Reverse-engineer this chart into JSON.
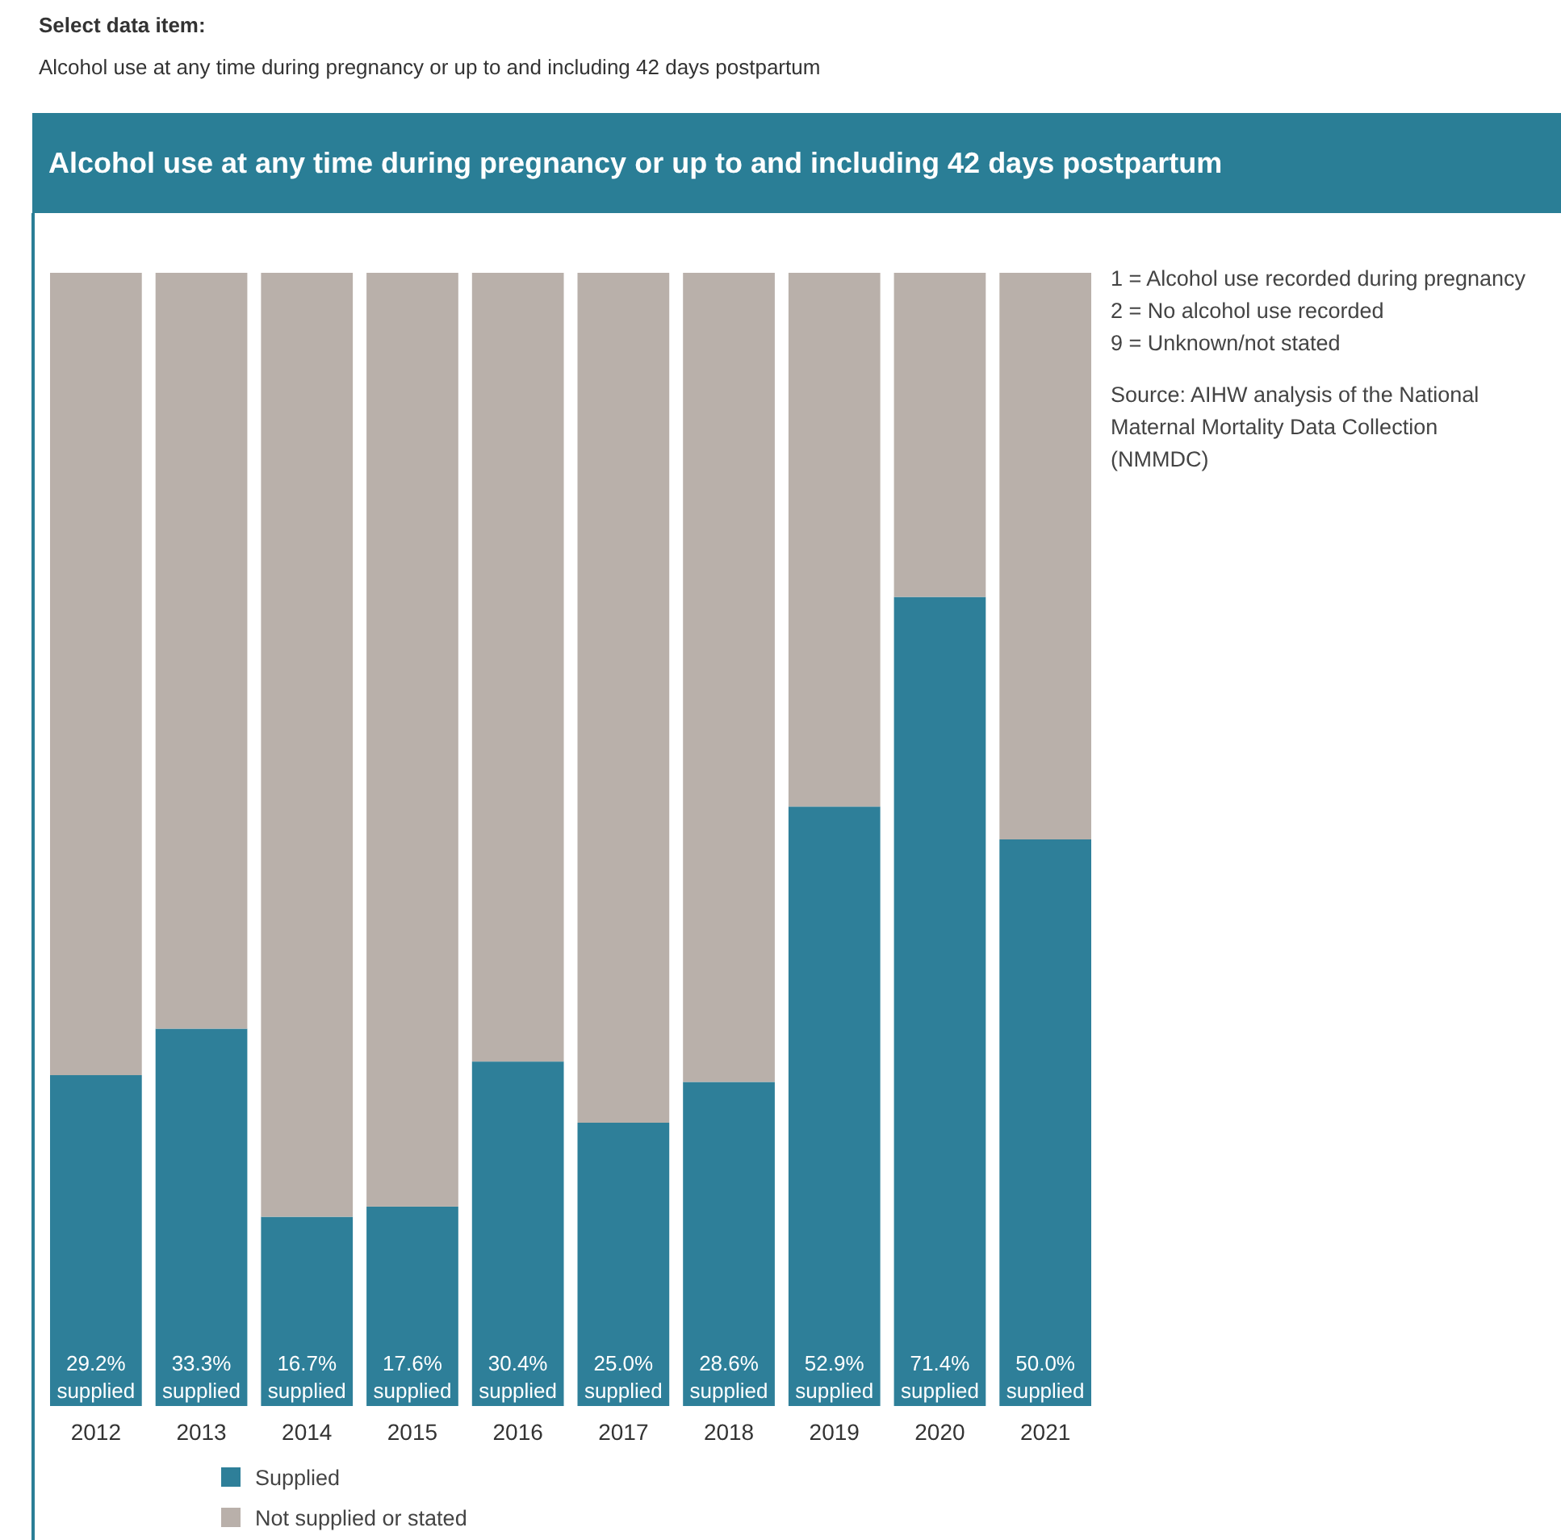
{
  "chart_data": {
    "type": "bar",
    "stacked": true,
    "title": "Alcohol use at any time during pregnancy or up to and including 42 days postpartum",
    "categories": [
      "2012",
      "2013",
      "2014",
      "2015",
      "2016",
      "2017",
      "2018",
      "2019",
      "2020",
      "2021"
    ],
    "ylim": [
      0,
      100
    ],
    "tick_labels": "x",
    "legend": "bottom left",
    "series": [
      {
        "name": "Supplied",
        "color": "#2e7f99",
        "values": [
          29.2,
          33.3,
          16.7,
          17.6,
          30.4,
          25.0,
          28.6,
          52.9,
          71.4,
          50.0
        ],
        "value_labels": [
          "29.2% supplied",
          "33.3% supplied",
          "16.7% supplied",
          "17.6% supplied",
          "30.4% supplied",
          "25.0% supplied",
          "28.6% supplied",
          "52.9% supplied",
          "71.4% supplied",
          "50.0% supplied"
        ]
      },
      {
        "name": "Not supplied or stated",
        "color": "#b9b0aa",
        "values": [
          70.8,
          66.7,
          83.3,
          82.4,
          69.6,
          75.0,
          71.4,
          47.1,
          28.6,
          50.0
        ]
      }
    ],
    "annotations": [
      "Select data item:",
      "Alcohol use at any time during pregnancy or up to and including 42 days postpartum",
      "1 = Alcohol use recorded during pregnancy",
      "2 = No alcohol use recorded",
      "9 = Unknown/not stated",
      "Source: AIHW analysis of the National Maternal Mortality Data Collection (NMMDC)"
    ]
  }
}
